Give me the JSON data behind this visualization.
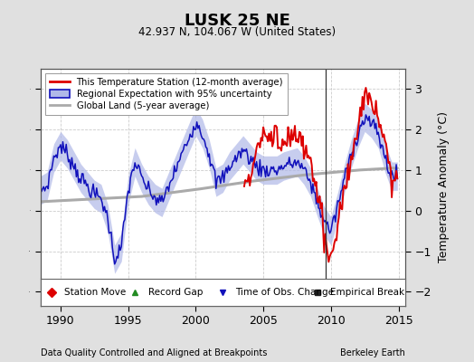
{
  "title": "LUSK 25 NE",
  "subtitle": "42.937 N, 104.067 W (United States)",
  "ylabel": "Temperature Anomaly (°C)",
  "xlabel_left": "Data Quality Controlled and Aligned at Breakpoints",
  "xlabel_right": "Berkeley Earth",
  "xlim": [
    1988.5,
    2015.5
  ],
  "ylim": [
    -2.35,
    3.5
  ],
  "yticks": [
    -2,
    -1,
    0,
    1,
    2,
    3
  ],
  "xticks": [
    1990,
    1995,
    2000,
    2005,
    2010,
    2015
  ],
  "bg_color": "#e0e0e0",
  "plot_bg_color": "#ffffff",
  "red_line_color": "#dd0000",
  "blue_line_color": "#1111bb",
  "blue_fill_color": "#b0b8e8",
  "gray_line_color": "#aaaaaa",
  "vertical_line_x": 2009.58,
  "station_move_x": 2009.58,
  "station_move_y": -2.0,
  "obs_change_x": 1992.75,
  "obs_change_y": -2.3,
  "blue_ctrl_t": [
    1988.5,
    1989.0,
    1989.5,
    1990.0,
    1990.5,
    1991.0,
    1991.5,
    1992.0,
    1992.5,
    1993.0,
    1993.5,
    1994.0,
    1994.5,
    1995.0,
    1995.5,
    1996.0,
    1996.5,
    1997.0,
    1997.5,
    1998.0,
    1998.5,
    1999.0,
    1999.5,
    2000.0,
    2000.5,
    2001.0,
    2001.5,
    2002.0,
    2002.5,
    2003.0,
    2003.5,
    2004.0,
    2004.5,
    2005.0,
    2005.5,
    2006.0,
    2006.5,
    2007.0,
    2007.5,
    2008.0,
    2008.5,
    2009.0,
    2009.5,
    2010.0,
    2010.5,
    2011.0,
    2011.5,
    2012.0,
    2012.5,
    2013.0,
    2013.5,
    2014.0,
    2014.5
  ],
  "blue_ctrl_v": [
    0.5,
    0.6,
    1.3,
    1.6,
    1.4,
    1.1,
    0.8,
    0.6,
    0.4,
    0.3,
    -0.2,
    -1.2,
    -0.9,
    0.5,
    1.2,
    0.8,
    0.5,
    0.3,
    0.2,
    0.6,
    1.0,
    1.4,
    1.8,
    2.2,
    1.9,
    1.4,
    0.7,
    0.8,
    1.1,
    1.3,
    1.5,
    1.3,
    1.1,
    1.0,
    1.0,
    1.0,
    1.1,
    1.15,
    1.2,
    1.0,
    0.7,
    0.2,
    -0.25,
    -0.5,
    0.1,
    0.8,
    1.4,
    1.9,
    2.3,
    2.15,
    1.9,
    1.3,
    0.85
  ],
  "red_ctrl_t": [
    2003.5,
    2004.0,
    2004.5,
    2005.0,
    2005.5,
    2006.0,
    2006.5,
    2007.0,
    2007.25,
    2007.5,
    2007.75,
    2008.0,
    2008.5,
    2009.0,
    2009.25,
    2009.5,
    2009.75,
    2010.0,
    2010.25,
    2010.5,
    2011.0,
    2011.5,
    2012.0,
    2012.25,
    2012.5,
    2013.0,
    2013.5,
    2014.0,
    2014.5
  ],
  "red_ctrl_v": [
    0.6,
    0.9,
    1.5,
    1.8,
    1.9,
    1.85,
    1.7,
    1.75,
    1.9,
    1.8,
    1.6,
    1.5,
    1.2,
    0.5,
    0.0,
    -0.6,
    -1.0,
    -1.15,
    -0.9,
    -0.4,
    0.5,
    1.3,
    2.1,
    2.5,
    2.7,
    2.6,
    2.2,
    1.8,
    0.78
  ],
  "gray_ctrl_t": [
    1988.5,
    1992.0,
    1996.0,
    2000.0,
    2004.0,
    2008.0,
    2012.0,
    2014.5
  ],
  "gray_ctrl_v": [
    0.22,
    0.28,
    0.35,
    0.52,
    0.72,
    0.88,
    1.0,
    1.05
  ]
}
